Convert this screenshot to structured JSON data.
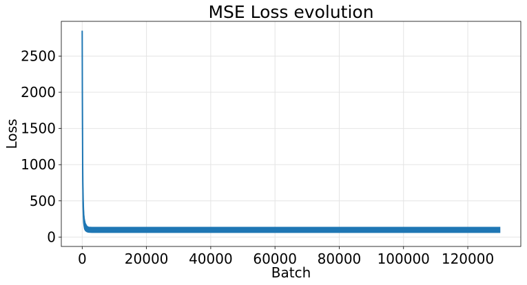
{
  "chart_data": {
    "type": "line",
    "title": "MSE Loss evolution",
    "xlabel": "Batch",
    "ylabel": "Loss",
    "xlim": [
      -6500,
      136500
    ],
    "ylim": [
      -130,
      2980
    ],
    "xticks": [
      0,
      20000,
      40000,
      60000,
      80000,
      100000,
      120000
    ],
    "yticks": [
      0,
      500,
      1000,
      1500,
      2000,
      2500
    ],
    "grid": true,
    "series": [
      {
        "color": "#1f77b4",
        "x": [
          0,
          50,
          100,
          150,
          200,
          300,
          400,
          500,
          700,
          1000,
          1500,
          2000,
          3000,
          5000,
          10000,
          20000,
          40000,
          60000,
          80000,
          100000,
          120000,
          130000
        ],
        "y": [
          2850,
          2050,
          1550,
          1000,
          760,
          520,
          380,
          290,
          210,
          160,
          130,
          115,
          108,
          104,
          102,
          101,
          100,
          100,
          100,
          100,
          100,
          100
        ],
        "band_low": [
          2850,
          1500,
          900,
          600,
          420,
          280,
          200,
          160,
          110,
          85,
          70,
          65,
          62,
          62,
          62,
          62,
          62,
          62,
          62,
          62,
          62,
          62
        ],
        "band_high": [
          2850,
          2050,
          1550,
          1000,
          760,
          560,
          430,
          330,
          250,
          190,
          150,
          138,
          135,
          135,
          135,
          135,
          135,
          135,
          135,
          135,
          135,
          135
        ]
      }
    ]
  }
}
